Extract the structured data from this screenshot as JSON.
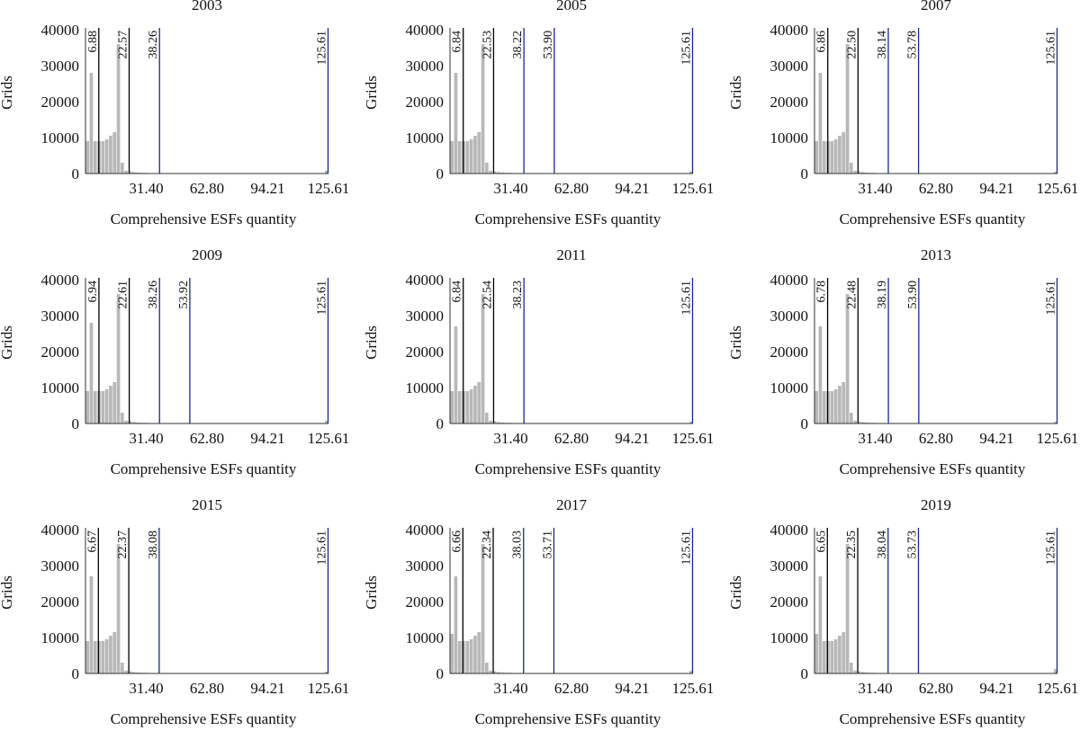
{
  "figure": {
    "x_label": "Comprehensive ESFs quantity",
    "y_label": "Grids"
  },
  "chart_data": [
    {
      "type": "bar",
      "title": "2003",
      "xlabel": "Comprehensive ESFs quantity",
      "ylabel": "Grids",
      "xlim": [
        0,
        125.61
      ],
      "ylim": [
        0,
        40000
      ],
      "xticks": [
        "31.40",
        "62.80",
        "94.21",
        "125.61"
      ],
      "yticks": [
        "0",
        "10000",
        "20000",
        "30000",
        "40000"
      ],
      "bins": [
        [
          0,
          2,
          9000
        ],
        [
          2,
          4,
          28000
        ],
        [
          4,
          6,
          9000
        ],
        [
          6,
          8,
          9000
        ],
        [
          8,
          10,
          9000
        ],
        [
          10,
          12,
          9500
        ],
        [
          12,
          14,
          10500
        ],
        [
          14,
          16,
          11500
        ],
        [
          16,
          18,
          36000
        ],
        [
          18,
          20,
          3000
        ],
        [
          20,
          22,
          800
        ],
        [
          22,
          24,
          600
        ],
        [
          24,
          26,
          400
        ],
        [
          26,
          28,
          300
        ],
        [
          28,
          32,
          200
        ],
        [
          32,
          38,
          100
        ],
        [
          123.61,
          125.61,
          800
        ]
      ],
      "breaks": [
        {
          "value": 6.88,
          "label": "6.88",
          "color": "#000000"
        },
        {
          "value": 22.57,
          "label": "22.57",
          "color": "#000000"
        },
        {
          "value": 38.26,
          "label": "38.26",
          "color": "#1a2a8a"
        },
        {
          "value": 125.61,
          "label": "125.61",
          "color": "#1a2a8a"
        }
      ]
    },
    {
      "type": "bar",
      "title": "2005",
      "xlabel": "Comprehensive ESFs quantity",
      "ylabel": "Grids",
      "xlim": [
        0,
        125.61
      ],
      "ylim": [
        0,
        40000
      ],
      "xticks": [
        "31.40",
        "62.80",
        "94.21",
        "125.61"
      ],
      "yticks": [
        "0",
        "10000",
        "20000",
        "30000",
        "40000"
      ],
      "bins": [
        [
          0,
          2,
          9000
        ],
        [
          2,
          4,
          28000
        ],
        [
          4,
          6,
          9000
        ],
        [
          6,
          8,
          9000
        ],
        [
          8,
          10,
          9000
        ],
        [
          10,
          12,
          9500
        ],
        [
          12,
          14,
          10500
        ],
        [
          14,
          16,
          11500
        ],
        [
          16,
          18,
          36000
        ],
        [
          18,
          20,
          3000
        ],
        [
          20,
          22,
          800
        ],
        [
          22,
          24,
          600
        ],
        [
          24,
          26,
          400
        ],
        [
          26,
          28,
          300
        ],
        [
          28,
          32,
          200
        ],
        [
          32,
          38,
          100
        ],
        [
          123.61,
          125.61,
          600
        ]
      ],
      "breaks": [
        {
          "value": 6.84,
          "label": "6.84",
          "color": "#000000"
        },
        {
          "value": 22.53,
          "label": "22.53",
          "color": "#000000"
        },
        {
          "value": 38.22,
          "label": "38.22",
          "color": "#1a2a8a"
        },
        {
          "value": 53.9,
          "label": "53.90",
          "color": "#1a2a8a"
        },
        {
          "value": 125.61,
          "label": "125.61",
          "color": "#1a2a8a"
        }
      ]
    },
    {
      "type": "bar",
      "title": "2007",
      "xlabel": "Comprehensive ESFs quantity",
      "ylabel": "Grids",
      "xlim": [
        0,
        125.61
      ],
      "ylim": [
        0,
        40000
      ],
      "xticks": [
        "31.40",
        "62.80",
        "94.21",
        "125.61"
      ],
      "yticks": [
        "0",
        "10000",
        "20000",
        "30000",
        "40000"
      ],
      "bins": [
        [
          0,
          2,
          9000
        ],
        [
          2,
          4,
          28000
        ],
        [
          4,
          6,
          9000
        ],
        [
          6,
          8,
          9000
        ],
        [
          8,
          10,
          9000
        ],
        [
          10,
          12,
          9500
        ],
        [
          12,
          14,
          10500
        ],
        [
          14,
          16,
          11500
        ],
        [
          16,
          18,
          36000
        ],
        [
          18,
          20,
          3000
        ],
        [
          20,
          22,
          800
        ],
        [
          22,
          24,
          600
        ],
        [
          24,
          26,
          400
        ],
        [
          26,
          28,
          300
        ],
        [
          28,
          32,
          200
        ],
        [
          32,
          38,
          100
        ],
        [
          123.61,
          125.61,
          500
        ]
      ],
      "breaks": [
        {
          "value": 6.86,
          "label": "6.86",
          "color": "#000000"
        },
        {
          "value": 22.5,
          "label": "22.50",
          "color": "#000000"
        },
        {
          "value": 38.14,
          "label": "38.14",
          "color": "#1a2a8a"
        },
        {
          "value": 53.78,
          "label": "53.78",
          "color": "#1a2a8a"
        },
        {
          "value": 125.61,
          "label": "125.61",
          "color": "#1a2a8a"
        }
      ]
    },
    {
      "type": "bar",
      "title": "2009",
      "xlabel": "Comprehensive ESFs quantity",
      "ylabel": "Grids",
      "xlim": [
        0,
        125.61
      ],
      "ylim": [
        0,
        40000
      ],
      "xticks": [
        "31.40",
        "62.80",
        "94.21",
        "125.61"
      ],
      "yticks": [
        "0",
        "10000",
        "20000",
        "30000",
        "40000"
      ],
      "bins": [
        [
          0,
          2,
          9000
        ],
        [
          2,
          4,
          28000
        ],
        [
          4,
          6,
          9000
        ],
        [
          6,
          8,
          9000
        ],
        [
          8,
          10,
          9000
        ],
        [
          10,
          12,
          9500
        ],
        [
          12,
          14,
          10500
        ],
        [
          14,
          16,
          11500
        ],
        [
          16,
          18,
          36000
        ],
        [
          18,
          20,
          3000
        ],
        [
          20,
          22,
          800
        ],
        [
          22,
          24,
          600
        ],
        [
          24,
          26,
          400
        ],
        [
          26,
          28,
          300
        ],
        [
          28,
          32,
          200
        ],
        [
          32,
          38,
          100
        ],
        [
          123.61,
          125.61,
          800
        ]
      ],
      "breaks": [
        {
          "value": 6.94,
          "label": "6.94",
          "color": "#000000"
        },
        {
          "value": 22.61,
          "label": "22.61",
          "color": "#000000"
        },
        {
          "value": 38.26,
          "label": "38.26",
          "color": "#1a2a8a"
        },
        {
          "value": 53.92,
          "label": "53.92",
          "color": "#1a2a8a"
        },
        {
          "value": 125.61,
          "label": "125.61",
          "color": "#1a2a8a"
        }
      ]
    },
    {
      "type": "bar",
      "title": "2011",
      "xlabel": "Comprehensive ESFs quantity",
      "ylabel": "Grids",
      "xlim": [
        0,
        125.61
      ],
      "ylim": [
        0,
        40000
      ],
      "xticks": [
        "31.40",
        "62.80",
        "94.21",
        "125.61"
      ],
      "yticks": [
        "0",
        "10000",
        "20000",
        "30000",
        "40000"
      ],
      "bins": [
        [
          0,
          2,
          9000
        ],
        [
          2,
          4,
          27000
        ],
        [
          4,
          6,
          9000
        ],
        [
          6,
          8,
          9000
        ],
        [
          8,
          10,
          9000
        ],
        [
          10,
          12,
          9500
        ],
        [
          12,
          14,
          10500
        ],
        [
          14,
          16,
          11500
        ],
        [
          16,
          18,
          36000
        ],
        [
          18,
          20,
          3000
        ],
        [
          20,
          22,
          800
        ],
        [
          22,
          24,
          600
        ],
        [
          24,
          26,
          400
        ],
        [
          26,
          28,
          300
        ],
        [
          28,
          32,
          200
        ],
        [
          32,
          38,
          100
        ],
        [
          123.61,
          125.61,
          500
        ]
      ],
      "breaks": [
        {
          "value": 6.84,
          "label": "6.84",
          "color": "#000000"
        },
        {
          "value": 22.54,
          "label": "22.54",
          "color": "#000000"
        },
        {
          "value": 38.23,
          "label": "38.23",
          "color": "#1a2a8a"
        },
        {
          "value": 125.61,
          "label": "125.61",
          "color": "#1a2a8a"
        }
      ]
    },
    {
      "type": "bar",
      "title": "2013",
      "xlabel": "Comprehensive ESFs quantity",
      "ylabel": "Grids",
      "xlim": [
        0,
        125.61
      ],
      "ylim": [
        0,
        40000
      ],
      "xticks": [
        "31.40",
        "62.80",
        "94.21",
        "125.61"
      ],
      "yticks": [
        "0",
        "10000",
        "20000",
        "30000",
        "40000"
      ],
      "bins": [
        [
          0,
          2,
          9000
        ],
        [
          2,
          4,
          27000
        ],
        [
          4,
          6,
          9000
        ],
        [
          6,
          8,
          9000
        ],
        [
          8,
          10,
          9000
        ],
        [
          10,
          12,
          9500
        ],
        [
          12,
          14,
          10500
        ],
        [
          14,
          16,
          11500
        ],
        [
          16,
          18,
          36000
        ],
        [
          18,
          20,
          3000
        ],
        [
          20,
          22,
          800
        ],
        [
          22,
          24,
          600
        ],
        [
          24,
          26,
          400
        ],
        [
          26,
          28,
          300
        ],
        [
          28,
          32,
          200
        ],
        [
          32,
          38,
          100
        ],
        [
          123.61,
          125.61,
          500
        ]
      ],
      "breaks": [
        {
          "value": 6.78,
          "label": "6.78",
          "color": "#000000"
        },
        {
          "value": 22.48,
          "label": "22.48",
          "color": "#000000"
        },
        {
          "value": 38.19,
          "label": "38.19",
          "color": "#1a2a8a"
        },
        {
          "value": 53.9,
          "label": "53.90",
          "color": "#1a2a8a"
        },
        {
          "value": 125.61,
          "label": "125.61",
          "color": "#1a2a8a"
        }
      ]
    },
    {
      "type": "bar",
      "title": "2015",
      "xlabel": "Comprehensive ESFs quantity",
      "ylabel": "Grids",
      "xlim": [
        0,
        125.61
      ],
      "ylim": [
        0,
        40000
      ],
      "xticks": [
        "31.40",
        "62.80",
        "94.21",
        "125.61"
      ],
      "yticks": [
        "0",
        "10000",
        "20000",
        "30000",
        "40000"
      ],
      "bins": [
        [
          0,
          2,
          9000
        ],
        [
          2,
          4,
          27000
        ],
        [
          4,
          6,
          9000
        ],
        [
          6,
          8,
          9000
        ],
        [
          8,
          10,
          9000
        ],
        [
          10,
          12,
          9500
        ],
        [
          12,
          14,
          10500
        ],
        [
          14,
          16,
          11500
        ],
        [
          16,
          18,
          36000
        ],
        [
          18,
          20,
          3000
        ],
        [
          20,
          22,
          800
        ],
        [
          22,
          24,
          600
        ],
        [
          24,
          26,
          400
        ],
        [
          26,
          28,
          300
        ],
        [
          28,
          32,
          200
        ],
        [
          32,
          38,
          100
        ],
        [
          123.61,
          125.61,
          500
        ]
      ],
      "breaks": [
        {
          "value": 6.67,
          "label": "6.67",
          "color": "#000000"
        },
        {
          "value": 22.37,
          "label": "22.37",
          "color": "#000000"
        },
        {
          "value": 38.08,
          "label": "38.08",
          "color": "#1a2a8a"
        },
        {
          "value": 125.61,
          "label": "125.61",
          "color": "#1a2a8a"
        }
      ]
    },
    {
      "type": "bar",
      "title": "2017",
      "xlabel": "Comprehensive ESFs quantity",
      "ylabel": "Grids",
      "xlim": [
        0,
        125.61
      ],
      "ylim": [
        0,
        40000
      ],
      "xticks": [
        "31.40",
        "62.80",
        "94.21",
        "125.61"
      ],
      "yticks": [
        "0",
        "10000",
        "20000",
        "30000",
        "40000"
      ],
      "bins": [
        [
          0,
          2,
          11000
        ],
        [
          2,
          4,
          27000
        ],
        [
          4,
          6,
          9000
        ],
        [
          6,
          8,
          9000
        ],
        [
          8,
          10,
          9000
        ],
        [
          10,
          12,
          9500
        ],
        [
          12,
          14,
          10500
        ],
        [
          14,
          16,
          11500
        ],
        [
          16,
          18,
          36000
        ],
        [
          18,
          20,
          3000
        ],
        [
          20,
          22,
          800
        ],
        [
          22,
          24,
          600
        ],
        [
          24,
          26,
          400
        ],
        [
          26,
          28,
          300
        ],
        [
          28,
          32,
          200
        ],
        [
          32,
          38,
          100
        ],
        [
          123.61,
          125.61,
          700
        ]
      ],
      "breaks": [
        {
          "value": 6.66,
          "label": "6.66",
          "color": "#000000"
        },
        {
          "value": 22.34,
          "label": "22.34",
          "color": "#000000"
        },
        {
          "value": 38.03,
          "label": "38.03",
          "color": "#1a2a8a"
        },
        {
          "value": 53.71,
          "label": "53.71",
          "color": "#1a2a8a"
        },
        {
          "value": 125.61,
          "label": "125.61",
          "color": "#1a2a8a"
        }
      ]
    },
    {
      "type": "bar",
      "title": "2019",
      "xlabel": "Comprehensive ESFs quantity",
      "ylabel": "Grids",
      "xlim": [
        0,
        125.61
      ],
      "ylim": [
        0,
        40000
      ],
      "xticks": [
        "31.40",
        "62.80",
        "94.21",
        "125.61"
      ],
      "yticks": [
        "0",
        "10000",
        "20000",
        "30000",
        "40000"
      ],
      "bins": [
        [
          0,
          2,
          11000
        ],
        [
          2,
          4,
          27000
        ],
        [
          4,
          6,
          9000
        ],
        [
          6,
          8,
          9000
        ],
        [
          8,
          10,
          9000
        ],
        [
          10,
          12,
          9500
        ],
        [
          12,
          14,
          10500
        ],
        [
          14,
          16,
          11500
        ],
        [
          16,
          18,
          36000
        ],
        [
          18,
          20,
          3000
        ],
        [
          20,
          22,
          800
        ],
        [
          22,
          24,
          600
        ],
        [
          24,
          26,
          400
        ],
        [
          26,
          28,
          300
        ],
        [
          28,
          32,
          200
        ],
        [
          32,
          38,
          100
        ],
        [
          123.61,
          125.61,
          1200
        ]
      ],
      "breaks": [
        {
          "value": 6.65,
          "label": "6.65",
          "color": "#000000"
        },
        {
          "value": 22.35,
          "label": "22.35",
          "color": "#000000"
        },
        {
          "value": 38.04,
          "label": "38.04",
          "color": "#1a2a8a"
        },
        {
          "value": 53.73,
          "label": "53.73",
          "color": "#1a2a8a"
        },
        {
          "value": 125.61,
          "label": "125.61",
          "color": "#1a2a8a"
        }
      ]
    }
  ]
}
